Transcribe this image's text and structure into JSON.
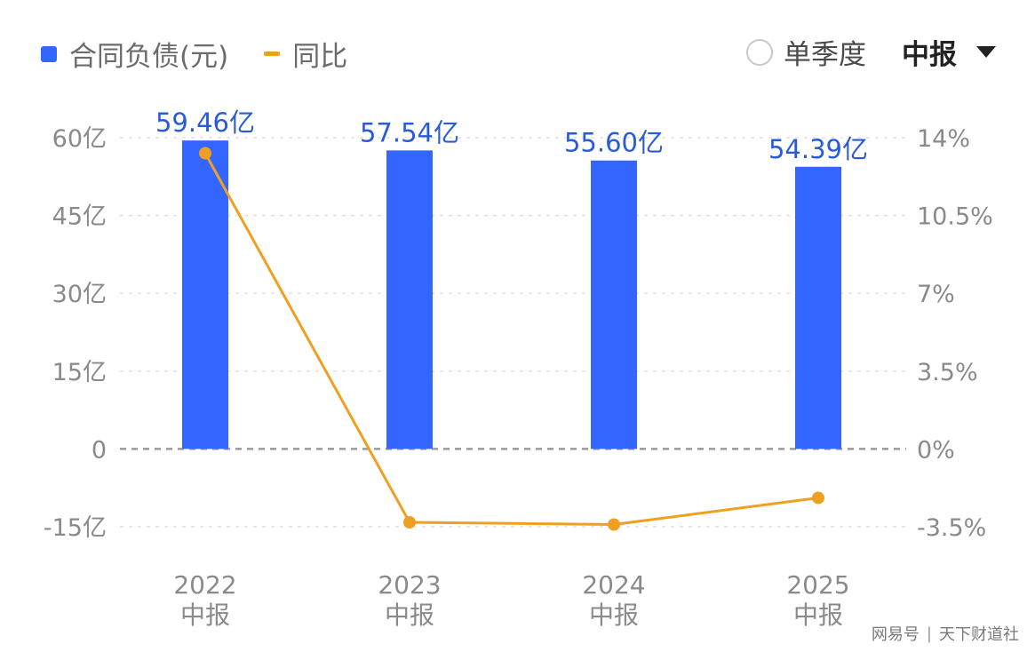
{
  "legend": {
    "bar_label": "合同负债(元)",
    "line_label": "同比"
  },
  "controls": {
    "quarter_label": "单季度",
    "period_selected": "中报"
  },
  "watermark": {
    "source": "网易号",
    "author": "天下财道社"
  },
  "colors": {
    "bar": "#3366ff",
    "line": "#f0a020",
    "bar_label": "#2a5bd7",
    "axis_text": "#8a8a8a",
    "grid": "#e2e2e2",
    "zero_line": "#9a9a9a"
  },
  "chart_data": {
    "type": "bar",
    "categories": [
      [
        "2022",
        "中报"
      ],
      [
        "2023",
        "中报"
      ],
      [
        "2024",
        "中报"
      ],
      [
        "2025",
        "中报"
      ]
    ],
    "series": [
      {
        "name": "合同负债(元)",
        "type": "bar",
        "axis": "left",
        "values": [
          59.46,
          57.54,
          55.6,
          54.39
        ],
        "data_labels": [
          "59.46亿",
          "57.54亿",
          "55.60亿",
          "54.39亿"
        ]
      },
      {
        "name": "同比",
        "type": "line",
        "axis": "right",
        "values": [
          13.3,
          -3.3,
          -3.4,
          -2.2
        ]
      }
    ],
    "left_axis": {
      "ylim": [
        -15,
        60
      ],
      "ticks": [
        60,
        45,
        30,
        15,
        0,
        -15
      ],
      "tick_labels": [
        "60亿",
        "45亿",
        "30亿",
        "15亿",
        "0",
        "-15亿"
      ]
    },
    "right_axis": {
      "ylim": [
        -3.5,
        14
      ],
      "ticks": [
        14,
        10.5,
        7,
        3.5,
        0,
        -3.5
      ],
      "tick_labels": [
        "14%",
        "10.5%",
        "7%",
        "3.5%",
        "0%",
        "-3.5%"
      ]
    },
    "grid": true,
    "legend_position": "top-left"
  }
}
